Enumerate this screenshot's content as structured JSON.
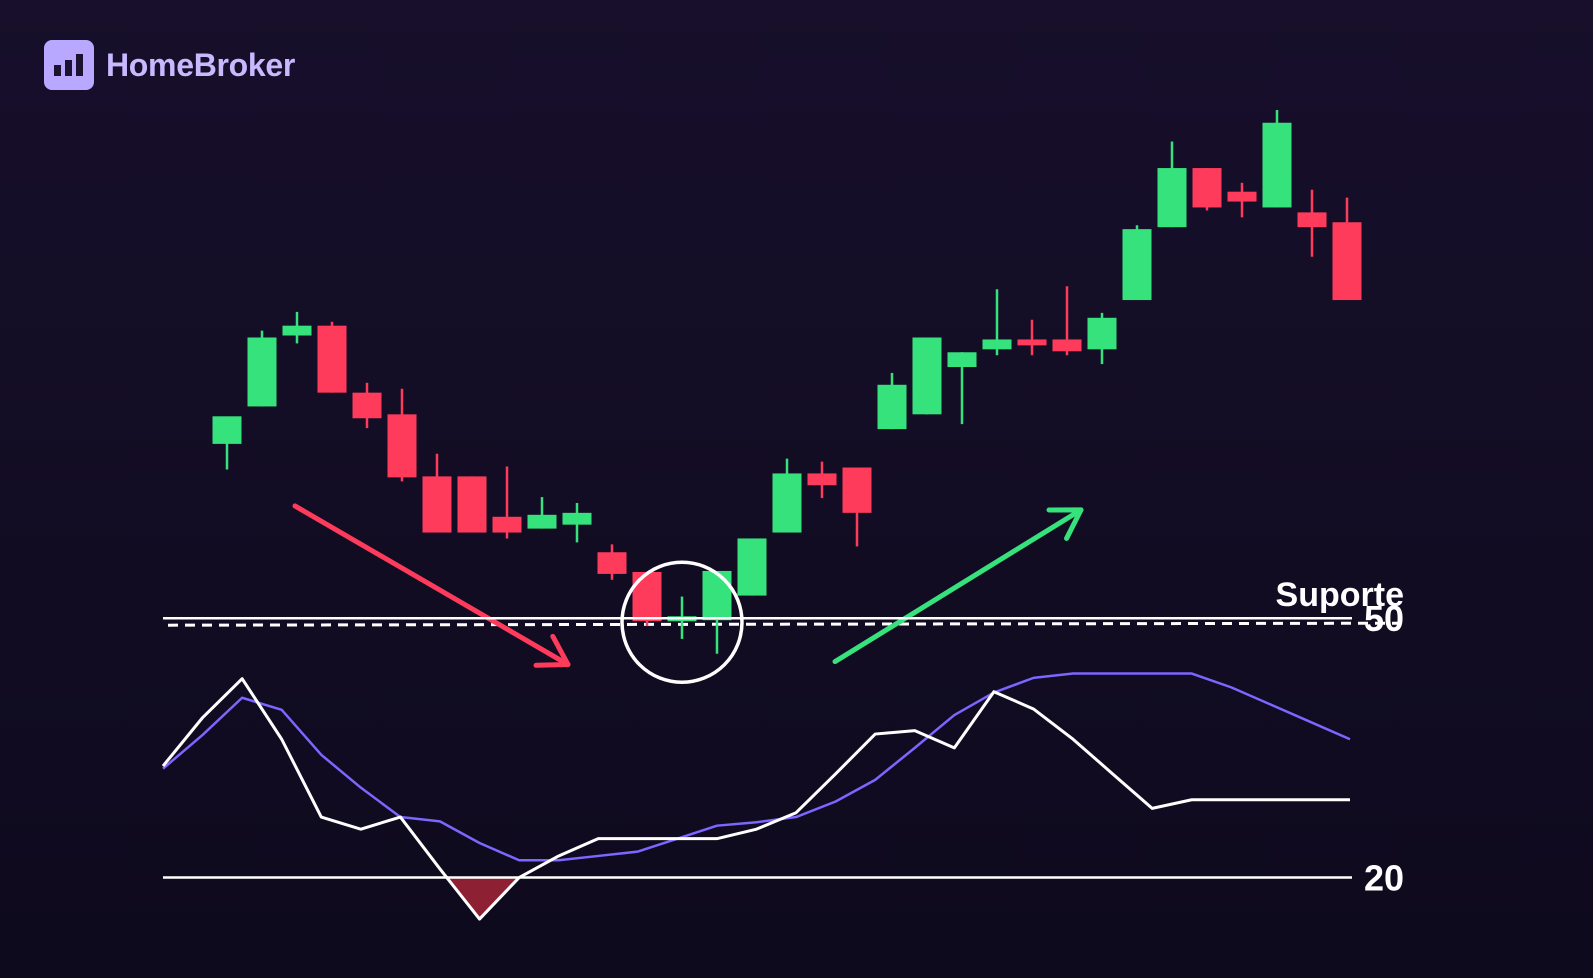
{
  "brand": {
    "name": "HomeBroker",
    "icon": "bar-chart-logo-icon",
    "color": "#c8b9ff",
    "box_color": "#b9a8ff"
  },
  "colors": {
    "up": "#36e27b",
    "down": "#ff3b5c",
    "k_line": "#ffffff",
    "d_line": "#7b66ff",
    "reference": "#ffffff",
    "oversold_fill": "#8e2034"
  },
  "chart_data": [
    {
      "type": "candlestick",
      "title": "",
      "price_range": [
        45,
        112
      ],
      "series": [
        {
          "values": [
            {
              "open": 71.0,
              "high": 73.3,
              "low": 68.4,
              "close": 73.8
            },
            {
              "open": 74.8,
              "high": 82.5,
              "low": 74.8,
              "close": 81.8
            },
            {
              "open": 82.0,
              "high": 84.4,
              "low": 81.2,
              "close": 83.0
            },
            {
              "open": 83.0,
              "high": 83.4,
              "low": 76.2,
              "close": 76.2
            },
            {
              "open": 76.2,
              "high": 77.2,
              "low": 72.6,
              "close": 73.6
            },
            {
              "open": 74.0,
              "high": 76.6,
              "low": 67.2,
              "close": 67.6
            },
            {
              "open": 67.7,
              "high": 70.0,
              "low": 62.0,
              "close": 62.0
            },
            {
              "open": 67.7,
              "high": 67.7,
              "low": 62.0,
              "close": 62.0
            },
            {
              "open": 63.6,
              "high": 68.7,
              "low": 61.4,
              "close": 62.0
            },
            {
              "open": 62.4,
              "high": 65.6,
              "low": 62.4,
              "close": 63.8
            },
            {
              "open": 62.8,
              "high": 65.0,
              "low": 61.0,
              "close": 64.0
            },
            {
              "open": 60.0,
              "high": 60.8,
              "low": 57.2,
              "close": 57.8
            },
            {
              "open": 58.0,
              "high": 58.0,
              "low": 52.5,
              "close": 53.0
            },
            {
              "open": 53.0,
              "high": 55.5,
              "low": 51.2,
              "close": 53.5
            },
            {
              "open": 53.1,
              "high": 58.1,
              "low": 49.7,
              "close": 58.1
            },
            {
              "open": 55.6,
              "high": 61.4,
              "low": 55.6,
              "close": 61.4
            },
            {
              "open": 62.0,
              "high": 69.5,
              "low": 62.0,
              "close": 68.0
            },
            {
              "open": 68.0,
              "high": 69.2,
              "low": 65.5,
              "close": 66.8
            },
            {
              "open": 68.6,
              "high": 68.6,
              "low": 60.6,
              "close": 64.0
            },
            {
              "open": 72.5,
              "high": 78.2,
              "low": 72.5,
              "close": 77.0
            },
            {
              "open": 74.0,
              "high": 81.8,
              "low": 74.0,
              "close": 81.8
            },
            {
              "open": 78.8,
              "high": 80.3,
              "low": 73.0,
              "close": 80.3
            },
            {
              "open": 80.6,
              "high": 86.7,
              "low": 80.0,
              "close": 81.6
            },
            {
              "open": 81.6,
              "high": 83.6,
              "low": 80.0,
              "close": 81.0
            },
            {
              "open": 81.6,
              "high": 87.0,
              "low": 80.0,
              "close": 80.4
            },
            {
              "open": 80.6,
              "high": 84.3,
              "low": 79.1,
              "close": 83.8
            },
            {
              "open": 85.6,
              "high": 93.2,
              "low": 85.6,
              "close": 92.8
            },
            {
              "open": 93.0,
              "high": 101.7,
              "low": 93.0,
              "close": 99.0
            },
            {
              "open": 99.0,
              "high": 99.0,
              "low": 94.7,
              "close": 95.0
            },
            {
              "open": 96.6,
              "high": 97.5,
              "low": 94.0,
              "close": 95.6
            },
            {
              "open": 95.0,
              "high": 104.9,
              "low": 95.0,
              "close": 103.6
            },
            {
              "open": 94.5,
              "high": 96.8,
              "low": 90.0,
              "close": 93.0
            },
            {
              "open": 93.5,
              "high": 96.0,
              "low": 85.6,
              "close": 85.6
            }
          ]
        }
      ],
      "support": {
        "label": "Suporte",
        "value": 53.0,
        "style": "dashed"
      },
      "annotations": [
        {
          "kind": "arrow",
          "direction": "down",
          "from_index": 1,
          "to_index": 10,
          "color": "#ff3b5c"
        },
        {
          "kind": "arrow",
          "direction": "up",
          "from_index": 17,
          "to_index": 24,
          "color": "#36e27b"
        },
        {
          "kind": "circle",
          "center_index": 13,
          "price": 53.5
        }
      ]
    },
    {
      "type": "line",
      "title": "",
      "ylim": [
        10,
        55
      ],
      "levels": [
        {
          "label": "50",
          "value": 50
        },
        {
          "label": "20",
          "value": 20
        }
      ],
      "x": [
        0,
        1,
        2,
        3,
        4,
        5,
        6,
        7,
        8,
        9,
        10,
        11,
        12,
        13,
        14,
        15,
        16,
        17,
        18,
        19,
        20,
        21,
        22,
        23,
        24,
        25,
        26,
        27,
        28,
        29,
        30
      ],
      "series": [
        {
          "values": [
            32.6,
            36.5,
            40.8,
            39.4,
            34.2,
            30.4,
            27.0,
            26.5,
            24.0,
            22.0,
            22.0,
            22.5,
            23.0,
            24.5,
            26.0,
            26.4,
            27.0,
            28.8,
            31.3,
            35.0,
            38.8,
            41.4,
            43.1,
            43.6,
            43.6,
            43.6,
            43.6,
            42.0,
            40.0,
            38.0,
            36.0
          ],
          "color": "#7b66ff"
        },
        {
          "values": [
            32.9,
            38.5,
            43.0,
            36.0,
            27.0,
            25.6,
            27.0,
            21.0,
            15.2,
            20.0,
            22.5,
            24.5,
            24.5,
            24.5,
            24.5,
            25.6,
            27.5,
            32.0,
            36.6,
            37.0,
            35.0,
            41.5,
            39.5,
            36.0,
            32.0,
            28.0,
            29.0,
            29.0,
            29.0,
            29.0,
            29.0
          ],
          "color": "#ffffff"
        }
      ]
    }
  ]
}
